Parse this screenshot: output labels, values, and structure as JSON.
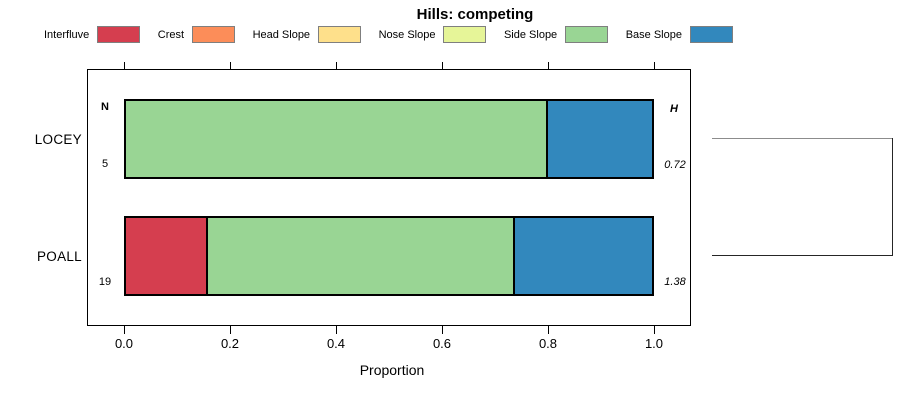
{
  "title": "Hills: competing",
  "chart_data": {
    "type": "bar",
    "orientation": "horizontal",
    "stacked": true,
    "title": "Hills: competing",
    "xlabel": "Proportion",
    "xlim": [
      0,
      1
    ],
    "xtick_labels": [
      "0.0",
      "0.2",
      "0.4",
      "0.6",
      "0.8",
      "1.0"
    ],
    "grid": false,
    "legend_position": "top-horizontal",
    "categories": [
      "LOCEY",
      "POALL"
    ],
    "series": [
      {
        "name": "Interfluve",
        "color": "#D53E4F",
        "values": [
          0,
          0.158
        ]
      },
      {
        "name": "Crest",
        "color": "#FC8D59",
        "values": [
          0,
          0
        ]
      },
      {
        "name": "Head Slope",
        "color": "#FEE08B",
        "values": [
          0,
          0
        ]
      },
      {
        "name": "Nose Slope",
        "color": "#E6F598",
        "values": [
          0,
          0
        ]
      },
      {
        "name": "Side Slope",
        "color": "#99D594",
        "values": [
          0.8,
          0.579
        ]
      },
      {
        "name": "Base Slope",
        "color": "#3288BD",
        "values": [
          0.2,
          0.263
        ]
      }
    ],
    "annotations": {
      "n_header": "N",
      "h_header": "H",
      "rows": [
        {
          "category": "LOCEY",
          "n": "5",
          "h": "0.72"
        },
        {
          "category": "POALL",
          "n": "19",
          "h": "1.38"
        }
      ]
    },
    "right_panel": "dendrogram bracket joining LOCEY and POALL"
  },
  "colors": {
    "axis": "#000000",
    "dendrogram_upper": "#8c8c8c",
    "dendrogram_lower": "#262626",
    "swatch_border": "#7f7f7f"
  }
}
